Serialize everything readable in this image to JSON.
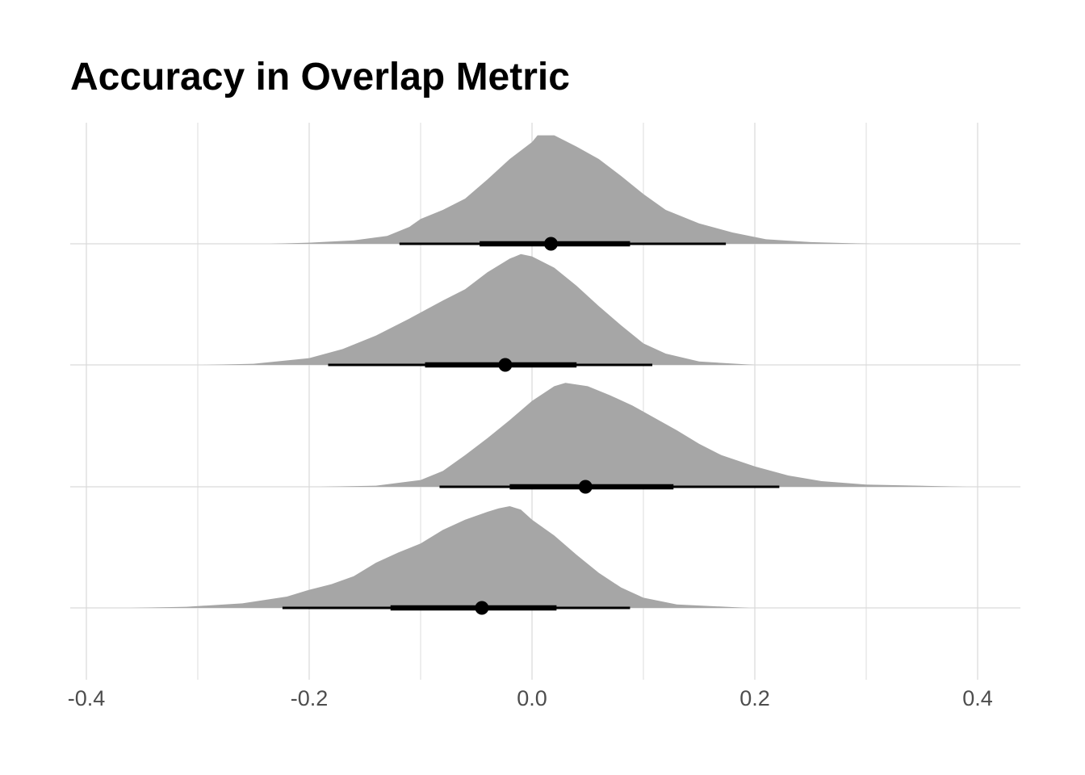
{
  "chart_data": {
    "type": "area",
    "subtype": "half-eye density with point and interval",
    "title": "Accuracy in Overlap Metric",
    "xlabel": "",
    "ylabel": "",
    "xlim": [
      -0.4,
      0.4
    ],
    "x_ticks": [
      -0.4,
      -0.2,
      0.0,
      0.2,
      0.4
    ],
    "x_tick_labels": [
      "-0.4",
      "-0.2",
      "0.0",
      "0.2",
      "0.4"
    ],
    "y_tick_labels": [],
    "grid": true,
    "colors": {
      "density": "#a6a6a6",
      "interval": "#000000",
      "grid": "#d9d9d9",
      "tick_text": "#4d4d4d"
    },
    "series": [
      {
        "point": 0.017,
        "interval_66": [
          -0.047,
          0.088
        ],
        "interval_95": [
          -0.119,
          0.174
        ],
        "range": [
          -0.235,
          0.305
        ],
        "density": [
          [
            -0.235,
            0.0
          ],
          [
            -0.2,
            0.01
          ],
          [
            -0.16,
            0.03
          ],
          [
            -0.13,
            0.07
          ],
          [
            -0.11,
            0.15
          ],
          [
            -0.1,
            0.22
          ],
          [
            -0.08,
            0.3
          ],
          [
            -0.06,
            0.4
          ],
          [
            -0.04,
            0.57
          ],
          [
            -0.02,
            0.75
          ],
          [
            0.0,
            0.9
          ],
          [
            0.005,
            0.96
          ],
          [
            0.02,
            0.96
          ],
          [
            0.04,
            0.86
          ],
          [
            0.06,
            0.75
          ],
          [
            0.08,
            0.6
          ],
          [
            0.1,
            0.44
          ],
          [
            0.12,
            0.3
          ],
          [
            0.15,
            0.18
          ],
          [
            0.18,
            0.1
          ],
          [
            0.21,
            0.04
          ],
          [
            0.25,
            0.015
          ],
          [
            0.305,
            0.0
          ]
        ]
      },
      {
        "point": -0.024,
        "interval_66": [
          -0.096,
          0.04
        ],
        "interval_95": [
          -0.183,
          0.108
        ],
        "range": [
          -0.295,
          0.205
        ],
        "density": [
          [
            -0.295,
            0.0
          ],
          [
            -0.25,
            0.01
          ],
          [
            -0.2,
            0.06
          ],
          [
            -0.17,
            0.14
          ],
          [
            -0.14,
            0.26
          ],
          [
            -0.11,
            0.41
          ],
          [
            -0.08,
            0.57
          ],
          [
            -0.06,
            0.67
          ],
          [
            -0.04,
            0.82
          ],
          [
            -0.02,
            0.94
          ],
          [
            -0.01,
            0.98
          ],
          [
            0.0,
            0.96
          ],
          [
            0.02,
            0.86
          ],
          [
            0.04,
            0.7
          ],
          [
            0.06,
            0.52
          ],
          [
            0.08,
            0.35
          ],
          [
            0.1,
            0.19
          ],
          [
            0.12,
            0.1
          ],
          [
            0.15,
            0.03
          ],
          [
            0.2,
            0.0
          ]
        ]
      },
      {
        "point": 0.048,
        "interval_66": [
          -0.02,
          0.127
        ],
        "interval_95": [
          -0.083,
          0.222
        ],
        "range": [
          -0.19,
          0.39
        ],
        "density": [
          [
            -0.19,
            0.0
          ],
          [
            -0.14,
            0.01
          ],
          [
            -0.1,
            0.06
          ],
          [
            -0.08,
            0.14
          ],
          [
            -0.06,
            0.28
          ],
          [
            -0.04,
            0.43
          ],
          [
            -0.02,
            0.59
          ],
          [
            0.0,
            0.76
          ],
          [
            0.02,
            0.89
          ],
          [
            0.03,
            0.92
          ],
          [
            0.05,
            0.89
          ],
          [
            0.07,
            0.81
          ],
          [
            0.09,
            0.72
          ],
          [
            0.11,
            0.61
          ],
          [
            0.13,
            0.5
          ],
          [
            0.15,
            0.38
          ],
          [
            0.17,
            0.28
          ],
          [
            0.2,
            0.18
          ],
          [
            0.23,
            0.1
          ],
          [
            0.26,
            0.05
          ],
          [
            0.3,
            0.02
          ],
          [
            0.39,
            0.0
          ]
        ]
      },
      {
        "point": -0.045,
        "interval_66": [
          -0.127,
          0.022
        ],
        "interval_95": [
          -0.224,
          0.088
        ],
        "range": [
          -0.36,
          0.195
        ],
        "density": [
          [
            -0.36,
            0.0
          ],
          [
            -0.31,
            0.01
          ],
          [
            -0.26,
            0.04
          ],
          [
            -0.22,
            0.1
          ],
          [
            -0.2,
            0.16
          ],
          [
            -0.18,
            0.21
          ],
          [
            -0.16,
            0.28
          ],
          [
            -0.14,
            0.4
          ],
          [
            -0.12,
            0.49
          ],
          [
            -0.1,
            0.57
          ],
          [
            -0.08,
            0.69
          ],
          [
            -0.06,
            0.78
          ],
          [
            -0.04,
            0.85
          ],
          [
            -0.03,
            0.88
          ],
          [
            -0.02,
            0.9
          ],
          [
            -0.01,
            0.87
          ],
          [
            0.0,
            0.78
          ],
          [
            0.02,
            0.64
          ],
          [
            0.04,
            0.47
          ],
          [
            0.06,
            0.31
          ],
          [
            0.08,
            0.18
          ],
          [
            0.1,
            0.09
          ],
          [
            0.13,
            0.03
          ],
          [
            0.195,
            0.0
          ]
        ]
      }
    ]
  }
}
